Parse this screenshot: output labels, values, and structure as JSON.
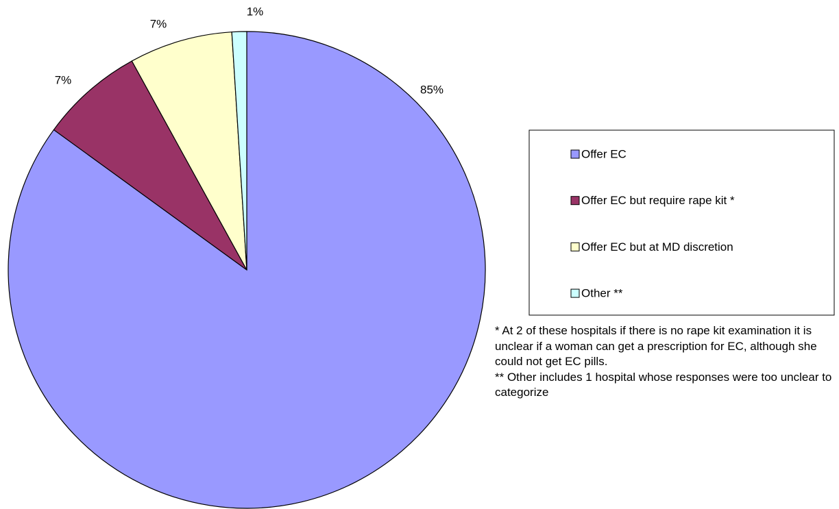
{
  "chart_data": {
    "type": "pie",
    "categories": [
      "Offer EC",
      "Offer EC but require rape kit *",
      "Offer EC but at MD discretion",
      "Other **"
    ],
    "values": [
      85,
      7,
      7,
      1
    ],
    "value_labels": [
      "85%",
      "7%",
      "7%",
      "1%"
    ],
    "colors": [
      "#9999ff",
      "#993366",
      "#ffffcc",
      "#ccffff"
    ],
    "notes": [
      "* At 2 of these hospitals if there is no rape kit examination it is unclear if a woman can get a prescription for EC, although she could not get EC pills.",
      "** Other includes 1 hospital whose responses were too unclear to categorize"
    ]
  }
}
